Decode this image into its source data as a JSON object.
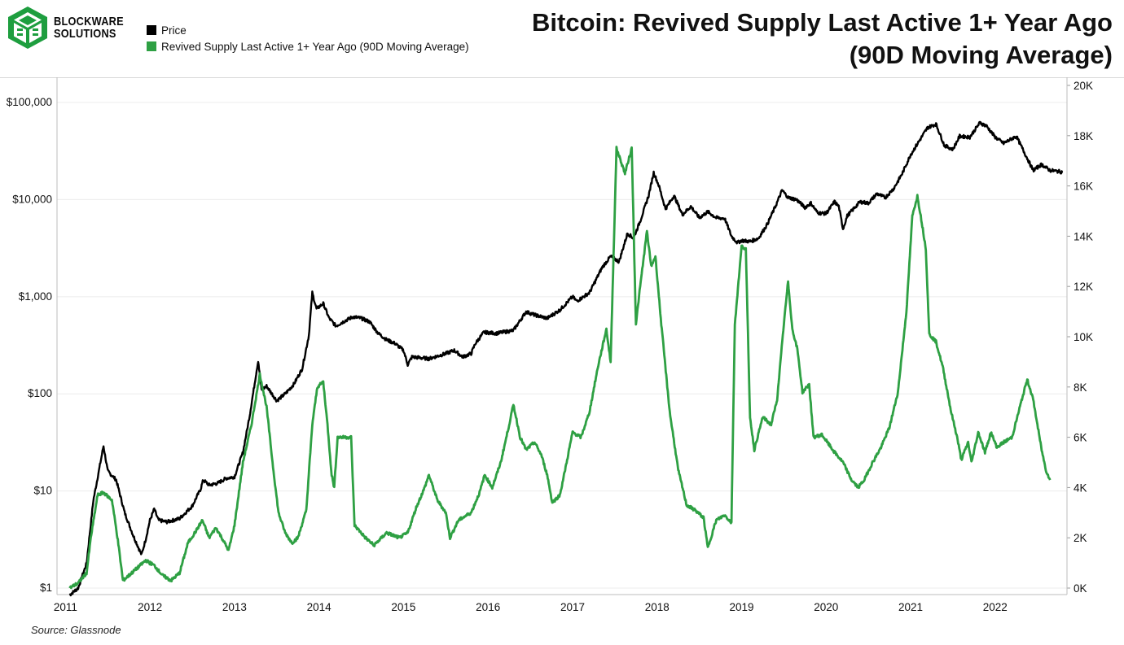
{
  "brand": {
    "line1": "BLOCKWARE",
    "line2": "SOLUTIONS",
    "logo_icon": "blockware-cube-logo",
    "logo_color": "#1e9e3f"
  },
  "title": {
    "line1": "Bitcoin: Revived Supply Last Active 1+ Year Ago",
    "line2": "(90D Moving Average)"
  },
  "legend": [
    {
      "label": "Price",
      "color": "#000000"
    },
    {
      "label": "Revived Supply Last Active 1+ Year Ago (90D Moving Average)",
      "color": "#2ea043"
    }
  ],
  "source": "Source: Glassnode",
  "chart_data": {
    "type": "line",
    "x_axis": {
      "ticks": [
        2011,
        2012,
        2013,
        2014,
        2015,
        2016,
        2017,
        2018,
        2019,
        2020,
        2021,
        2022
      ],
      "range": [
        2010.9,
        2022.85
      ]
    },
    "y_left": {
      "scale": "log",
      "range": [
        1,
        150000
      ],
      "ticks": [
        1,
        10,
        100,
        1000,
        10000,
        100000
      ],
      "tick_labels": [
        "$1",
        "$10",
        "$100",
        "$1,000",
        "$10,000",
        "$100,000"
      ]
    },
    "y_right": {
      "scale": "linear",
      "range": [
        0,
        20000
      ],
      "ticks": [
        0,
        2000,
        4000,
        6000,
        8000,
        10000,
        12000,
        14000,
        16000,
        18000,
        20000
      ],
      "tick_labels": [
        "0K",
        "2K",
        "4K",
        "6K",
        "8K",
        "10K",
        "12K",
        "14K",
        "16K",
        "18K",
        "20K"
      ]
    },
    "grid": true,
    "legend_position": "top-left",
    "series": [
      {
        "name": "Price",
        "axis": "left",
        "color": "#000000",
        "points": [
          [
            2011.05,
            0.85
          ],
          [
            2011.15,
            1.0
          ],
          [
            2011.25,
            1.8
          ],
          [
            2011.33,
            8.0
          ],
          [
            2011.45,
            29
          ],
          [
            2011.5,
            16
          ],
          [
            2011.6,
            13
          ],
          [
            2011.7,
            6
          ],
          [
            2011.8,
            3.5
          ],
          [
            2011.9,
            2.2
          ],
          [
            2011.95,
            3.2
          ],
          [
            2012.0,
            5.0
          ],
          [
            2012.05,
            6.5
          ],
          [
            2012.1,
            5.0
          ],
          [
            2012.2,
            4.8
          ],
          [
            2012.35,
            5.2
          ],
          [
            2012.5,
            7.0
          ],
          [
            2012.6,
            10.5
          ],
          [
            2012.63,
            13.0
          ],
          [
            2012.7,
            11.5
          ],
          [
            2012.8,
            12.0
          ],
          [
            2012.9,
            13.5
          ],
          [
            2013.0,
            14
          ],
          [
            2013.1,
            25
          ],
          [
            2013.18,
            60
          ],
          [
            2013.28,
            220
          ],
          [
            2013.32,
            110
          ],
          [
            2013.38,
            120
          ],
          [
            2013.5,
            85
          ],
          [
            2013.6,
            100
          ],
          [
            2013.7,
            125
          ],
          [
            2013.8,
            180
          ],
          [
            2013.88,
            400
          ],
          [
            2013.92,
            1100
          ],
          [
            2013.97,
            750
          ],
          [
            2014.05,
            850
          ],
          [
            2014.12,
            600
          ],
          [
            2014.2,
            500
          ],
          [
            2014.3,
            560
          ],
          [
            2014.4,
            620
          ],
          [
            2014.5,
            600
          ],
          [
            2014.6,
            550
          ],
          [
            2014.7,
            420
          ],
          [
            2014.8,
            360
          ],
          [
            2014.9,
            330
          ],
          [
            2015.0,
            280
          ],
          [
            2015.05,
            200
          ],
          [
            2015.1,
            240
          ],
          [
            2015.3,
            230
          ],
          [
            2015.5,
            260
          ],
          [
            2015.6,
            280
          ],
          [
            2015.7,
            240
          ],
          [
            2015.8,
            260
          ],
          [
            2015.85,
            330
          ],
          [
            2015.95,
            430
          ],
          [
            2016.1,
            420
          ],
          [
            2016.3,
            450
          ],
          [
            2016.45,
            700
          ],
          [
            2016.55,
            650
          ],
          [
            2016.7,
            600
          ],
          [
            2016.85,
            730
          ],
          [
            2017.0,
            1000
          ],
          [
            2017.05,
            900
          ],
          [
            2017.2,
            1100
          ],
          [
            2017.35,
            2000
          ],
          [
            2017.45,
            2600
          ],
          [
            2017.55,
            2300
          ],
          [
            2017.65,
            4500
          ],
          [
            2017.72,
            4000
          ],
          [
            2017.8,
            6000
          ],
          [
            2017.9,
            11000
          ],
          [
            2017.96,
            19000
          ],
          [
            2018.02,
            14000
          ],
          [
            2018.1,
            8000
          ],
          [
            2018.2,
            11000
          ],
          [
            2018.3,
            7000
          ],
          [
            2018.4,
            8500
          ],
          [
            2018.5,
            6500
          ],
          [
            2018.6,
            7500
          ],
          [
            2018.7,
            6500
          ],
          [
            2018.8,
            6400
          ],
          [
            2018.88,
            4200
          ],
          [
            2018.95,
            3600
          ],
          [
            2019.0,
            3800
          ],
          [
            2019.1,
            3700
          ],
          [
            2019.2,
            4000
          ],
          [
            2019.3,
            5500
          ],
          [
            2019.4,
            8500
          ],
          [
            2019.48,
            12500
          ],
          [
            2019.55,
            10500
          ],
          [
            2019.65,
            10000
          ],
          [
            2019.75,
            8300
          ],
          [
            2019.82,
            9200
          ],
          [
            2019.9,
            7300
          ],
          [
            2020.0,
            7200
          ],
          [
            2020.1,
            9500
          ],
          [
            2020.15,
            8500
          ],
          [
            2020.2,
            5000
          ],
          [
            2020.25,
            6800
          ],
          [
            2020.4,
            9500
          ],
          [
            2020.5,
            9200
          ],
          [
            2020.6,
            11500
          ],
          [
            2020.7,
            10500
          ],
          [
            2020.8,
            13000
          ],
          [
            2020.9,
            18500
          ],
          [
            2021.0,
            29000
          ],
          [
            2021.1,
            40000
          ],
          [
            2021.2,
            55000
          ],
          [
            2021.3,
            60000
          ],
          [
            2021.4,
            36000
          ],
          [
            2021.5,
            33000
          ],
          [
            2021.58,
            45000
          ],
          [
            2021.7,
            44000
          ],
          [
            2021.82,
            62000
          ],
          [
            2021.9,
            57000
          ],
          [
            2022.0,
            44000
          ],
          [
            2022.1,
            38000
          ],
          [
            2022.25,
            45000
          ],
          [
            2022.35,
            30000
          ],
          [
            2022.45,
            20000
          ],
          [
            2022.55,
            23000
          ],
          [
            2022.65,
            20000
          ],
          [
            2022.75,
            19500
          ],
          [
            2022.8,
            19200
          ]
        ]
      },
      {
        "name": "Revived Supply Last Active 1+ Year Ago (90D Moving Average)",
        "axis": "right",
        "color": "#2ea043",
        "points": [
          [
            2011.05,
            0
          ],
          [
            2011.15,
            200
          ],
          [
            2011.25,
            600
          ],
          [
            2011.3,
            2000
          ],
          [
            2011.38,
            3700
          ],
          [
            2011.45,
            3800
          ],
          [
            2011.55,
            3500
          ],
          [
            2011.62,
            1900
          ],
          [
            2011.68,
            300
          ],
          [
            2011.75,
            500
          ],
          [
            2011.85,
            800
          ],
          [
            2011.95,
            1100
          ],
          [
            2012.05,
            900
          ],
          [
            2012.15,
            500
          ],
          [
            2012.25,
            300
          ],
          [
            2012.35,
            600
          ],
          [
            2012.45,
            1800
          ],
          [
            2012.55,
            2300
          ],
          [
            2012.62,
            2700
          ],
          [
            2012.7,
            2000
          ],
          [
            2012.78,
            2400
          ],
          [
            2012.85,
            2000
          ],
          [
            2012.93,
            1500
          ],
          [
            2013.0,
            2500
          ],
          [
            2013.1,
            5000
          ],
          [
            2013.2,
            6500
          ],
          [
            2013.3,
            8500
          ],
          [
            2013.38,
            7200
          ],
          [
            2013.45,
            5000
          ],
          [
            2013.52,
            3000
          ],
          [
            2013.6,
            2200
          ],
          [
            2013.68,
            1800
          ],
          [
            2013.75,
            2000
          ],
          [
            2013.85,
            3100
          ],
          [
            2013.92,
            6500
          ],
          [
            2013.98,
            8000
          ],
          [
            2014.05,
            8200
          ],
          [
            2014.1,
            6500
          ],
          [
            2014.15,
            4500
          ],
          [
            2014.18,
            4000
          ],
          [
            2014.22,
            6000
          ],
          [
            2014.3,
            6000
          ],
          [
            2014.38,
            6000
          ],
          [
            2014.42,
            2500
          ],
          [
            2014.55,
            2000
          ],
          [
            2014.65,
            1700
          ],
          [
            2014.8,
            2200
          ],
          [
            2014.95,
            2000
          ],
          [
            2015.05,
            2200
          ],
          [
            2015.15,
            3200
          ],
          [
            2015.25,
            4000
          ],
          [
            2015.3,
            4500
          ],
          [
            2015.4,
            3500
          ],
          [
            2015.5,
            3000
          ],
          [
            2015.55,
            2000
          ],
          [
            2015.65,
            2700
          ],
          [
            2015.8,
            3000
          ],
          [
            2015.9,
            3800
          ],
          [
            2015.96,
            4500
          ],
          [
            2016.05,
            4000
          ],
          [
            2016.15,
            5000
          ],
          [
            2016.25,
            6500
          ],
          [
            2016.3,
            7300
          ],
          [
            2016.38,
            6000
          ],
          [
            2016.45,
            5500
          ],
          [
            2016.55,
            5800
          ],
          [
            2016.63,
            5300
          ],
          [
            2016.7,
            4500
          ],
          [
            2016.76,
            3400
          ],
          [
            2016.85,
            3700
          ],
          [
            2016.93,
            5000
          ],
          [
            2017.0,
            6200
          ],
          [
            2017.1,
            6000
          ],
          [
            2017.2,
            7000
          ],
          [
            2017.3,
            8800
          ],
          [
            2017.4,
            10300
          ],
          [
            2017.45,
            9000
          ],
          [
            2017.52,
            17500
          ],
          [
            2017.62,
            16500
          ],
          [
            2017.7,
            17500
          ],
          [
            2017.75,
            10500
          ],
          [
            2017.8,
            12000
          ],
          [
            2017.88,
            14200
          ],
          [
            2017.93,
            12800
          ],
          [
            2017.98,
            13200
          ],
          [
            2018.05,
            10500
          ],
          [
            2018.15,
            7000
          ],
          [
            2018.25,
            4700
          ],
          [
            2018.35,
            3300
          ],
          [
            2018.45,
            3100
          ],
          [
            2018.55,
            2800
          ],
          [
            2018.6,
            1600
          ],
          [
            2018.7,
            2700
          ],
          [
            2018.8,
            2900
          ],
          [
            2018.88,
            2600
          ],
          [
            2018.92,
            10500
          ],
          [
            2019.0,
            13600
          ],
          [
            2019.05,
            13500
          ],
          [
            2019.1,
            6800
          ],
          [
            2019.15,
            5500
          ],
          [
            2019.25,
            6800
          ],
          [
            2019.35,
            6500
          ],
          [
            2019.42,
            7500
          ],
          [
            2019.5,
            10500
          ],
          [
            2019.55,
            12200
          ],
          [
            2019.6,
            10300
          ],
          [
            2019.66,
            9500
          ],
          [
            2019.72,
            7800
          ],
          [
            2019.8,
            8100
          ],
          [
            2019.85,
            6000
          ],
          [
            2019.95,
            6100
          ],
          [
            2020.1,
            5400
          ],
          [
            2020.2,
            5000
          ],
          [
            2020.3,
            4300
          ],
          [
            2020.38,
            4000
          ],
          [
            2020.45,
            4300
          ],
          [
            2020.55,
            5000
          ],
          [
            2020.65,
            5600
          ],
          [
            2020.75,
            6400
          ],
          [
            2020.85,
            7800
          ],
          [
            2020.95,
            11000
          ],
          [
            2021.02,
            14800
          ],
          [
            2021.08,
            15600
          ],
          [
            2021.12,
            14800
          ],
          [
            2021.18,
            13500
          ],
          [
            2021.22,
            10100
          ],
          [
            2021.3,
            9800
          ],
          [
            2021.38,
            8800
          ],
          [
            2021.48,
            7000
          ],
          [
            2021.55,
            6000
          ],
          [
            2021.6,
            5100
          ],
          [
            2021.68,
            5800
          ],
          [
            2021.72,
            5000
          ],
          [
            2021.8,
            6200
          ],
          [
            2021.88,
            5400
          ],
          [
            2021.95,
            6200
          ],
          [
            2022.02,
            5600
          ],
          [
            2022.1,
            5800
          ],
          [
            2022.2,
            6000
          ],
          [
            2022.3,
            7300
          ],
          [
            2022.38,
            8300
          ],
          [
            2022.45,
            7500
          ],
          [
            2022.5,
            6500
          ],
          [
            2022.55,
            5500
          ],
          [
            2022.6,
            4700
          ],
          [
            2022.65,
            4300
          ]
        ]
      }
    ]
  }
}
